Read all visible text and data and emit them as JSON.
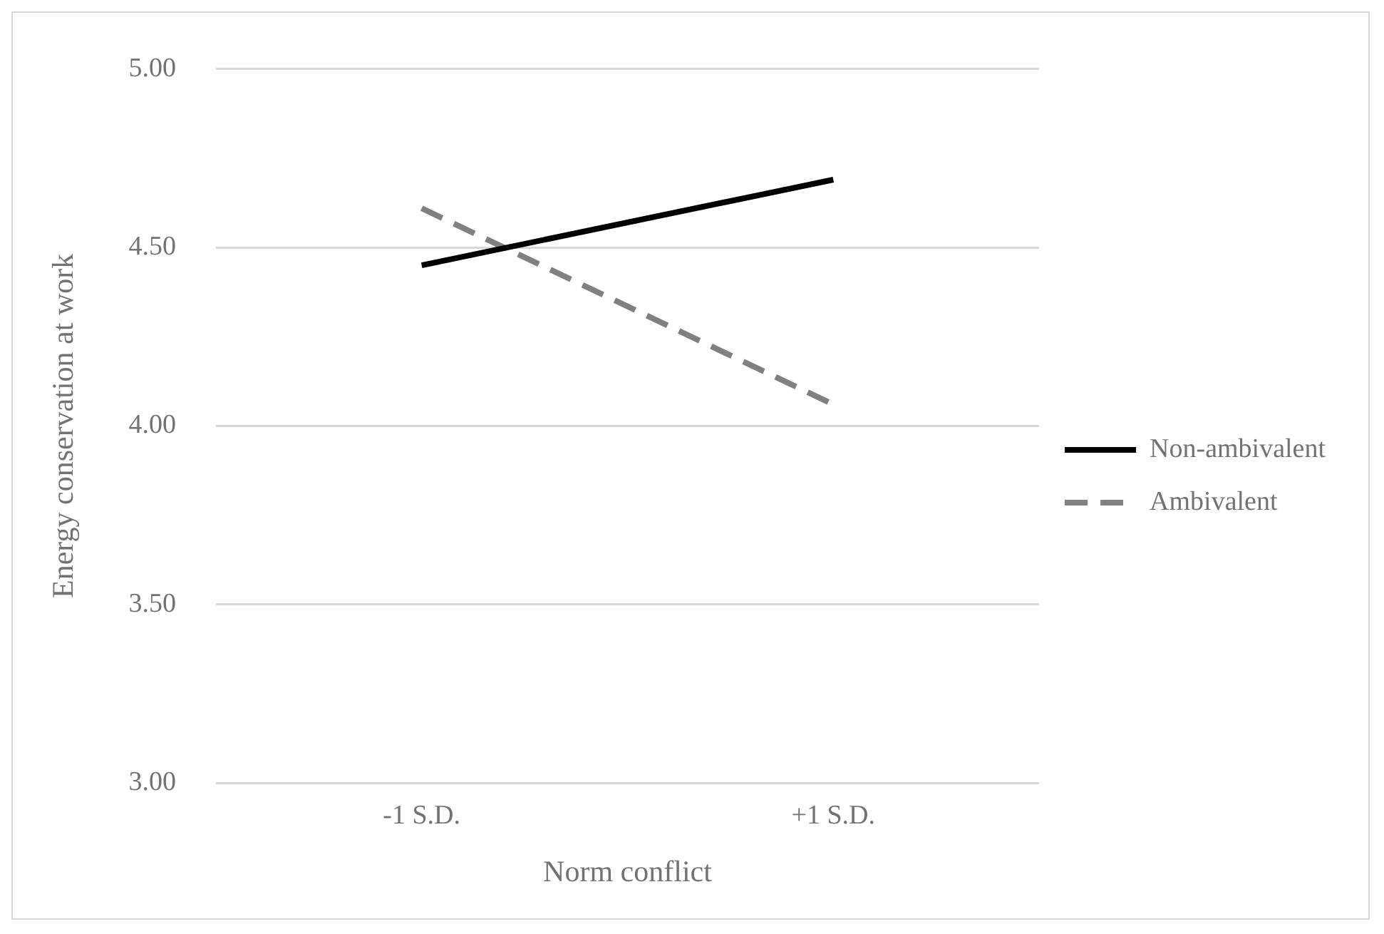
{
  "chart_data": {
    "type": "line",
    "xlabel": "Norm conflict",
    "ylabel": "Energy conservation at work",
    "categories": [
      "-1 S.D.",
      "+1 S.D."
    ],
    "series": [
      {
        "name": "Non-ambivalent",
        "color": "#000000",
        "values": [
          4.45,
          4.69
        ],
        "line_style": "solid"
      },
      {
        "name": "Ambivalent",
        "color": "#808080",
        "values": [
          4.61,
          4.06
        ],
        "line_style": "dashed"
      }
    ],
    "ylim": [
      3,
      5
    ],
    "yticks": [
      {
        "value": 3,
        "label": "3.00"
      },
      {
        "value": 3.5,
        "label": "3.50"
      },
      {
        "value": 4,
        "label": "4.00"
      },
      {
        "value": 4.5,
        "label": "4.50"
      },
      {
        "value": 5,
        "label": "5.00"
      }
    ],
    "grid": "y",
    "legend": "right",
    "marker": "none"
  }
}
